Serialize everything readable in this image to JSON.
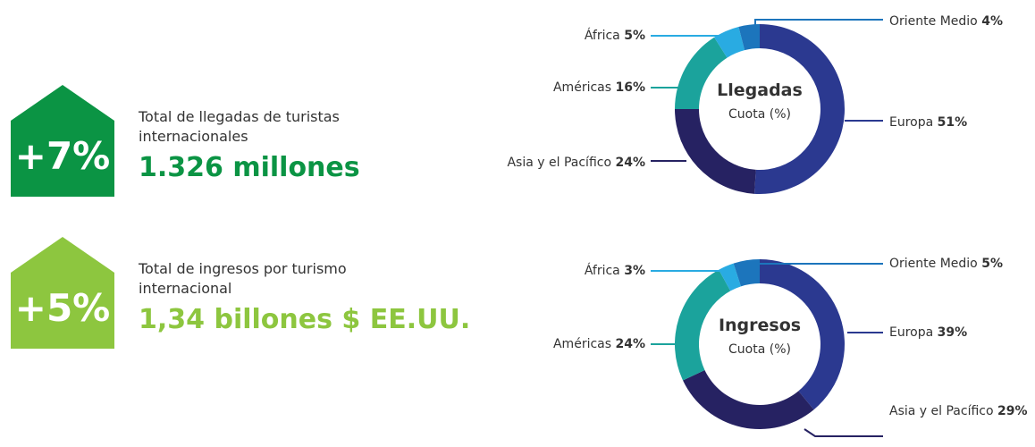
{
  "stats": [
    {
      "change": "+7%",
      "label": "Total de llegadas de turistas internacionales",
      "total": "1.326 millones",
      "color": "#0b9444"
    },
    {
      "change": "+5%",
      "label": "Total de ingresos por turismo internacional",
      "total": "1,34 billones $ EE.UU.",
      "color": "#8dc63f"
    }
  ],
  "chart_data": [
    {
      "type": "pie",
      "title": "Llegadas",
      "subtitle": "Cuota (%)",
      "categories": [
        "Europa",
        "Asia y el Pacífico",
        "Américas",
        "África",
        "Oriente Medio"
      ],
      "values": [
        51,
        24,
        16,
        5,
        4
      ],
      "value_labels": [
        "51%",
        "24%",
        "16%",
        "5%",
        "4%"
      ],
      "colors": [
        "#2b3990",
        "#262262",
        "#1ba39c",
        "#29abe2",
        "#1c75bc"
      ]
    },
    {
      "type": "pie",
      "title": "Ingresos",
      "subtitle": "Cuota (%)",
      "categories": [
        "Europa",
        "Asia y el Pacífico",
        "Américas",
        "África",
        "Oriente Medio"
      ],
      "values": [
        39,
        29,
        24,
        3,
        5
      ],
      "value_labels": [
        "39%",
        "29%",
        "24%",
        "3%",
        "5%"
      ],
      "colors": [
        "#2b3990",
        "#262262",
        "#1ba39c",
        "#29abe2",
        "#1c75bc"
      ]
    }
  ]
}
